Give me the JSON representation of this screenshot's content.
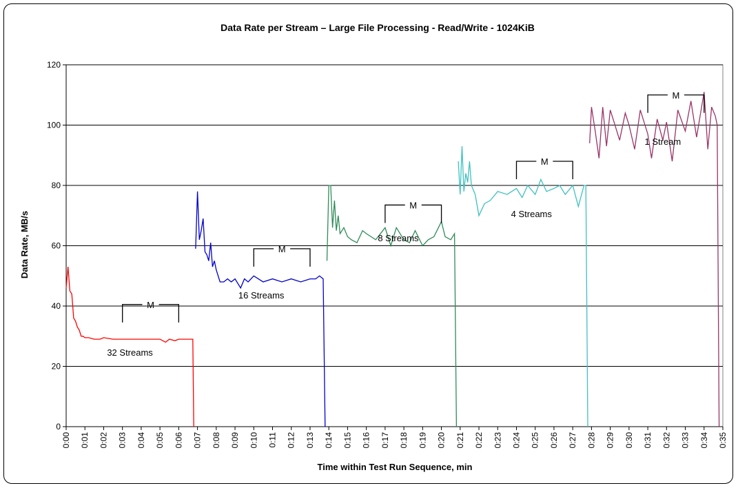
{
  "chart_data": {
    "type": "line",
    "title": "Data Rate per Stream – Large File Processing - Read/Write - 1024KiB",
    "xlabel": "Time within Test Run Sequence, min",
    "ylabel": "Data Rate, MB/s",
    "xlim": [
      0,
      35
    ],
    "ylim": [
      0,
      120
    ],
    "y_ticks": [
      0,
      20,
      40,
      60,
      80,
      100,
      120
    ],
    "x_ticks": [
      "0:00",
      "0:01",
      "0:02",
      "0:03",
      "0:04",
      "0:05",
      "0:06",
      "0:07",
      "0:08",
      "0:09",
      "0:10",
      "0:11",
      "0:12",
      "0:13",
      "0:14",
      "0:15",
      "0:16",
      "0:17",
      "0:18",
      "0:19",
      "0:20",
      "0:21",
      "0:22",
      "0:23",
      "0:24",
      "0:25",
      "0:26",
      "0:27",
      "0:28",
      "0:29",
      "0:30",
      "0:31",
      "0:32",
      "0:33",
      "0:34",
      "0:35"
    ],
    "grid": "horizontal",
    "background": "#ffffff",
    "series": [
      {
        "color": "#ff0000",
        "label": "32 Streams",
        "x": [
          0.0,
          0.1,
          0.2,
          0.3,
          0.4,
          0.5,
          0.6,
          0.7,
          0.8,
          0.9,
          1.0,
          1.2,
          1.5,
          1.8,
          2.0,
          2.5,
          3.0,
          3.5,
          4.0,
          4.5,
          5.0,
          5.3,
          5.5,
          5.8,
          6.0,
          6.3,
          6.6,
          6.75,
          6.8
        ],
        "y": [
          46,
          53,
          45,
          44,
          36,
          35,
          33,
          32,
          30,
          30,
          29.5,
          29.5,
          29,
          29,
          29.5,
          29,
          29,
          29,
          29,
          29,
          29,
          28,
          29,
          28.5,
          29,
          29,
          29,
          29,
          0
        ]
      },
      {
        "color": "#0000cc",
        "label": "16 Streams",
        "x": [
          6.9,
          7.0,
          7.1,
          7.2,
          7.3,
          7.4,
          7.5,
          7.6,
          7.7,
          7.8,
          7.9,
          8.0,
          8.2,
          8.4,
          8.6,
          8.8,
          9.0,
          9.3,
          9.5,
          9.7,
          10.0,
          10.5,
          11.0,
          11.5,
          12.0,
          12.5,
          13.0,
          13.3,
          13.5,
          13.7,
          13.8
        ],
        "y": [
          59,
          78,
          62,
          65,
          69,
          58,
          57,
          55,
          61,
          53,
          55,
          52,
          48,
          48,
          49,
          48,
          49,
          46,
          49,
          48,
          50,
          48,
          49,
          48,
          49,
          48,
          49,
          49,
          50,
          49,
          0
        ]
      },
      {
        "color": "#2e8b57",
        "label": "8 Streams",
        "x": [
          13.9,
          14.0,
          14.1,
          14.2,
          14.3,
          14.4,
          14.5,
          14.6,
          14.8,
          15.0,
          15.2,
          15.5,
          15.8,
          16.0,
          16.5,
          17.0,
          17.3,
          17.6,
          18.0,
          18.3,
          18.6,
          19.0,
          19.3,
          19.6,
          20.0,
          20.2,
          20.5,
          20.7,
          20.8
        ],
        "y": [
          55,
          80,
          80,
          66,
          75,
          65,
          70,
          64,
          66,
          63,
          62,
          61,
          65,
          64,
          62,
          66,
          60,
          66,
          62,
          61,
          65,
          60,
          62,
          63,
          68,
          63,
          62,
          64,
          0
        ]
      },
      {
        "color": "#40c0c0",
        "label": "4 Streams",
        "x": [
          20.9,
          21.0,
          21.1,
          21.2,
          21.3,
          21.4,
          21.5,
          21.6,
          21.8,
          22.0,
          22.3,
          22.6,
          23.0,
          23.5,
          24.0,
          24.3,
          24.6,
          25.0,
          25.3,
          25.6,
          26.0,
          26.3,
          26.6,
          27.0,
          27.3,
          27.6,
          27.7,
          27.8
        ],
        "y": [
          88,
          77,
          93,
          78,
          84,
          81,
          88,
          80,
          77,
          70,
          74,
          75,
          78,
          77,
          79,
          76,
          80,
          77,
          82,
          78,
          79,
          80,
          77,
          80,
          73,
          80,
          80,
          0
        ]
      },
      {
        "color": "#993366",
        "label": "1 Stream",
        "x": [
          27.9,
          28.0,
          28.2,
          28.4,
          28.6,
          28.8,
          29.0,
          29.2,
          29.5,
          29.8,
          30.0,
          30.3,
          30.6,
          31.0,
          31.2,
          31.5,
          31.8,
          32.0,
          32.3,
          32.6,
          33.0,
          33.3,
          33.6,
          34.0,
          34.2,
          34.4,
          34.6,
          34.7,
          34.8
        ],
        "y": [
          94,
          106,
          98,
          89,
          106,
          93,
          105,
          101,
          95,
          104,
          100,
          92,
          105,
          97,
          89,
          102,
          95,
          101,
          88,
          105,
          98,
          108,
          96,
          111,
          92,
          106,
          103,
          100,
          0
        ]
      }
    ],
    "markers": [
      {
        "label": "M",
        "x1": 3.0,
        "x2": 6.0,
        "y": 40.5
      },
      {
        "label": "M",
        "x1": 10.0,
        "x2": 13.0,
        "y": 59
      },
      {
        "label": "M",
        "x1": 17.0,
        "x2": 20.0,
        "y": 73.5
      },
      {
        "label": "M",
        "x1": 24.0,
        "x2": 27.0,
        "y": 88
      },
      {
        "label": "M",
        "x1": 31.0,
        "x2": 34.0,
        "y": 110
      }
    ],
    "annotations": [
      {
        "text": "32 Streams",
        "x": 3.4,
        "y": 23.5
      },
      {
        "text": "16 Streams",
        "x": 10.4,
        "y": 42.5
      },
      {
        "text": "8 Streams",
        "x": 17.7,
        "y": 61.5
      },
      {
        "text": "4 Streams",
        "x": 24.8,
        "y": 69.5
      },
      {
        "text": "1 Stream",
        "x": 31.8,
        "y": 93.5
      }
    ]
  }
}
